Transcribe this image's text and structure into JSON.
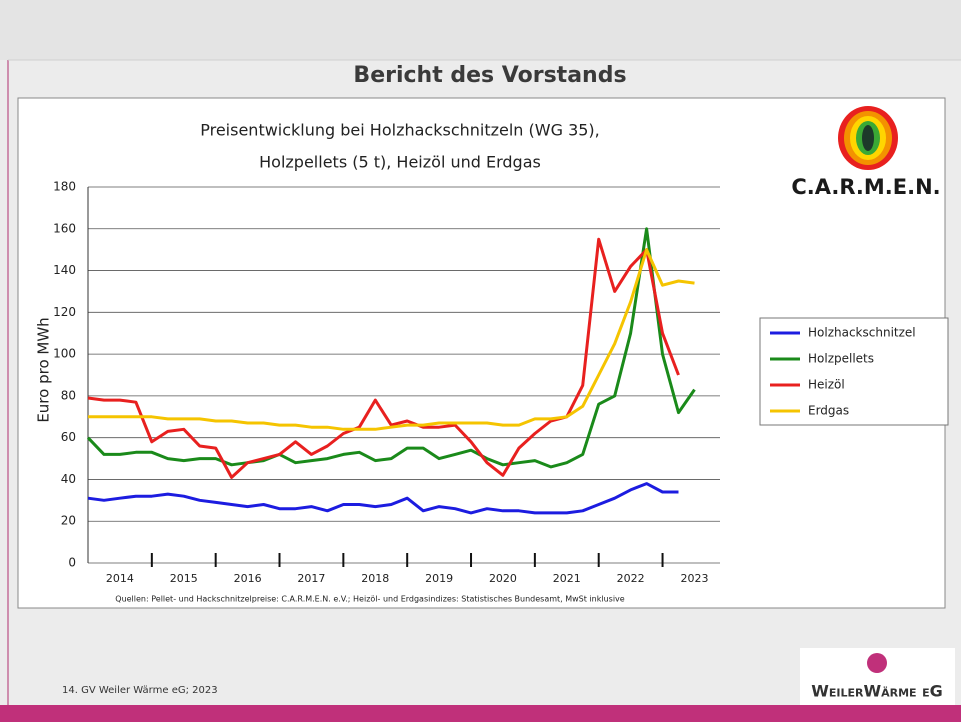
{
  "slide": {
    "title": "Bericht des Vorstands",
    "footer": "14. GV Weiler Wärme eG; 2023",
    "carmen_logo": "C.A.R.M.E.N.",
    "weiler_logo": "WeilerWärme eG"
  },
  "chart_data": {
    "type": "line",
    "title_lines": [
      "Preisentwicklung bei Holzhackschnitzeln (WG 35),",
      "Holzpellets (5 t), Heizöl und Erdgas"
    ],
    "y_label": "Euro pro MWh",
    "source": "Quellen: Pellet- und Hackschnitzelpreise: C.A.R.M.E.N. e.V.; Heizöl- und Erdgasindizes: Statistisches Bundesamt, MwSt inklusive",
    "x": [
      2014,
      2014.25,
      2014.5,
      2014.75,
      2015,
      2015.25,
      2015.5,
      2015.75,
      2016,
      2016.25,
      2016.5,
      2016.75,
      2017,
      2017.25,
      2017.5,
      2017.75,
      2018,
      2018.25,
      2018.5,
      2018.75,
      2019,
      2019.25,
      2019.5,
      2019.75,
      2020,
      2020.25,
      2020.5,
      2020.75,
      2021,
      2021.25,
      2021.5,
      2021.75,
      2022,
      2022.25,
      2022.5,
      2022.75,
      2023,
      2023.25,
      2023.5
    ],
    "xlim": [
      2014,
      2023.9
    ],
    "xticks": [
      2015,
      2016,
      2017,
      2018,
      2019,
      2020,
      2021,
      2022,
      2023
    ],
    "year_labels": [
      2014,
      2015,
      2016,
      2017,
      2018,
      2019,
      2020,
      2021,
      2022,
      2023
    ],
    "ylim": [
      0,
      180
    ],
    "yticks": [
      0,
      20,
      40,
      60,
      80,
      100,
      120,
      140,
      160,
      180
    ],
    "grid": true,
    "legend": "right",
    "series": [
      {
        "name": "Holzhackschnitzel",
        "color": "#1c1ce0",
        "values": [
          31,
          30,
          31,
          32,
          32,
          33,
          32,
          30,
          29,
          28,
          27,
          28,
          26,
          26,
          27,
          25,
          28,
          28,
          27,
          28,
          31,
          25,
          27,
          26,
          24,
          26,
          25,
          25,
          24,
          24,
          24,
          25,
          28,
          31,
          35,
          38,
          34,
          34,
          null
        ]
      },
      {
        "name": "Holzpellets",
        "color": "#1a8a1a",
        "values": [
          60,
          52,
          52,
          53,
          53,
          50,
          49,
          50,
          50,
          47,
          48,
          49,
          52,
          48,
          49,
          50,
          52,
          53,
          49,
          50,
          55,
          55,
          50,
          52,
          54,
          50,
          47,
          48,
          49,
          46,
          48,
          52,
          76,
          80,
          110,
          160,
          100,
          72,
          83
        ]
      },
      {
        "name": "Heizöl",
        "color": "#e8201f",
        "values": [
          79,
          78,
          78,
          77,
          58,
          63,
          64,
          56,
          55,
          41,
          48,
          50,
          52,
          58,
          52,
          56,
          62,
          65,
          78,
          66,
          68,
          65,
          65,
          66,
          58,
          48,
          42,
          55,
          62,
          68,
          70,
          85,
          155,
          130,
          142,
          150,
          110,
          90,
          null
        ]
      },
      {
        "name": "Erdgas",
        "color": "#f5c400",
        "values": [
          70,
          70,
          70,
          70,
          70,
          69,
          69,
          69,
          68,
          68,
          67,
          67,
          66,
          66,
          65,
          65,
          64,
          64,
          64,
          65,
          66,
          66,
          67,
          67,
          67,
          67,
          66,
          66,
          69,
          69,
          70,
          75,
          90,
          105,
          125,
          150,
          133,
          135,
          134
        ]
      }
    ]
  }
}
